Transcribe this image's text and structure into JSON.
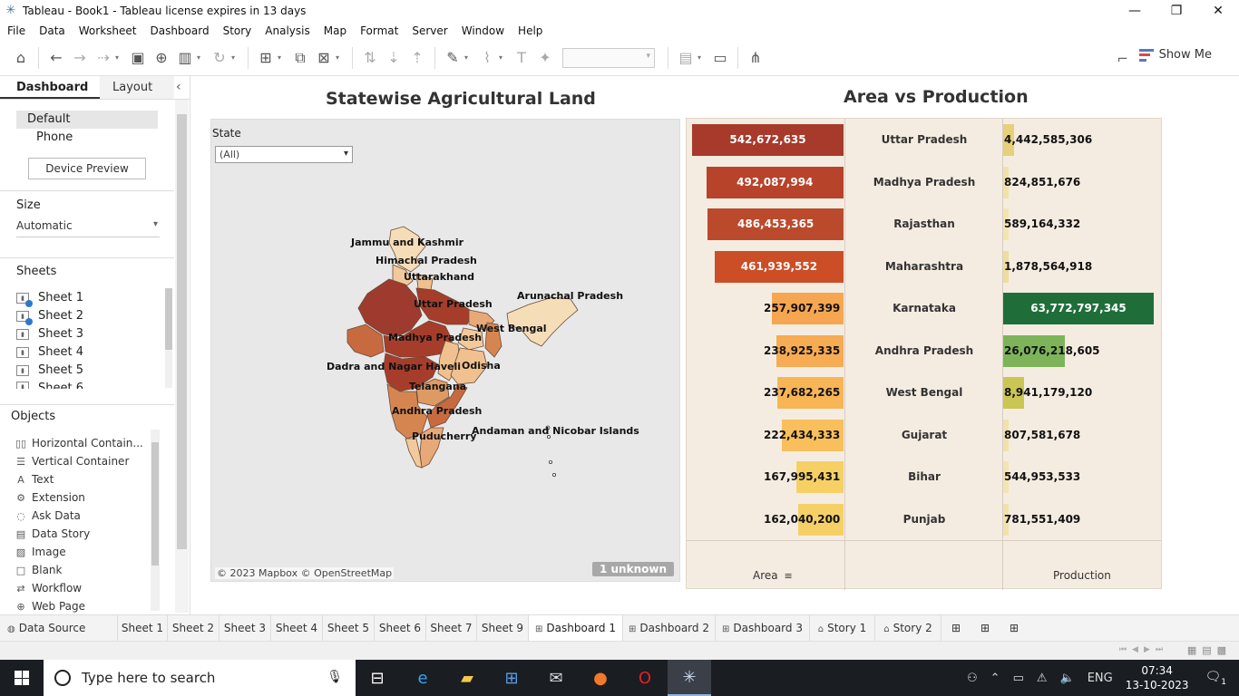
{
  "window": {
    "title": "Tableau - Book1 - Tableau license expires in 13 days",
    "controls": [
      "—",
      "❐",
      "✕"
    ]
  },
  "menu": [
    "File",
    "Data",
    "Worksheet",
    "Dashboard",
    "Story",
    "Analysis",
    "Map",
    "Format",
    "Server",
    "Window",
    "Help"
  ],
  "toolbar": {
    "show_me_label": "Show Me"
  },
  "left_panel": {
    "tabs": [
      "Dashboard",
      "Layout"
    ],
    "devices": [
      "Default",
      "Phone"
    ],
    "device_preview_label": "Device Preview",
    "size_heading": "Size",
    "size_value": "Automatic",
    "sheets_heading": "Sheets",
    "sheets": [
      "Sheet 1",
      "Sheet 2",
      "Sheet 3",
      "Sheet 4",
      "Sheet 5",
      "Sheet 6"
    ],
    "objects_heading": "Objects",
    "objects": [
      {
        "label": "Horizontal Contain...",
        "icon": "horizontal-container-icon"
      },
      {
        "label": "Vertical Container",
        "icon": "vertical-container-icon"
      },
      {
        "label": "Text",
        "icon": "text-icon"
      },
      {
        "label": "Extension",
        "icon": "extension-icon"
      },
      {
        "label": "Ask Data",
        "icon": "ask-data-icon"
      },
      {
        "label": "Data Story",
        "icon": "data-story-icon"
      },
      {
        "label": "Image",
        "icon": "image-icon"
      },
      {
        "label": "Blank",
        "icon": "blank-icon"
      },
      {
        "label": "Workflow",
        "icon": "workflow-icon"
      },
      {
        "label": "Web Page",
        "icon": "web-page-icon"
      }
    ]
  },
  "map": {
    "title": "Statewise Agricultural Land",
    "filter_label": "State",
    "filter_value": "(All)",
    "attribution": "© 2023 Mapbox © OpenStreetMap",
    "unknown_badge": "1 unknown",
    "labels": [
      "Jammu and Kashmir",
      "Himachal Pradesh",
      "Uttarakhand",
      "Arunachal Pradesh",
      "Uttar Pradesh",
      "West Bengal",
      "Madhya Pradesh",
      "Dadra and Nagar Haveli",
      "Odisha",
      "Telangana",
      "Andhra Pradesh",
      "Andaman and Nicobar Islands",
      "Puducherry"
    ]
  },
  "chart_data": {
    "type": "bar",
    "title": "Area vs Production",
    "categories": [
      "Uttar Pradesh",
      "Madhya Pradesh",
      "Rajasthan",
      "Maharashtra",
      "Karnataka",
      "Andhra Pradesh",
      "West Bengal",
      "Gujarat",
      "Bihar",
      "Punjab"
    ],
    "series": [
      {
        "name": "Area",
        "values": [
          542672635,
          492087994,
          486453365,
          461939552,
          257907399,
          238925335,
          237682265,
          222434333,
          167995431,
          162040200
        ],
        "labels": [
          "542,672,635",
          "492,087,994",
          "486,453,365",
          "461,939,552",
          "257,907,399",
          "238,925,335",
          "237,682,265",
          "222,434,333",
          "167,995,431",
          "162,040,200"
        ]
      },
      {
        "name": "Production",
        "values": [
          4442585306,
          824851676,
          589164332,
          1878564918,
          63772797345,
          26076218605,
          8941179120,
          807581678,
          544953533,
          781551409
        ],
        "labels": [
          "4,442,585,306",
          "824,851,676",
          "589,164,332",
          "1,878,564,918",
          "63,772,797,345",
          "26,076,218,605",
          "8,941,179,120",
          "807,581,678",
          "544,953,533",
          "781,551,409"
        ]
      }
    ],
    "area_axis_label": "Area",
    "production_axis_label": "Production",
    "area_colors": [
      "#a83a2b",
      "#b8432b",
      "#bb4a2c",
      "#cc4e26",
      "#f6a650",
      "#f7ab52",
      "#f8b556",
      "#f8bf5c",
      "#f6d064",
      "#f4d066"
    ],
    "production_colors": [
      "#e6d07a",
      "#f0e2a8",
      "#f2e6b0",
      "#eedd9c",
      "#1f6e3a",
      "#7db45a",
      "#c9c653",
      "#f0e2a8",
      "#f2e6b0",
      "#f0e2a8"
    ]
  },
  "bottom_tabs": {
    "data_source": "Data Source",
    "tabs": [
      "Sheet 1",
      "Sheet 2",
      "Sheet 3",
      "Sheet 4",
      "Sheet 5",
      "Sheet 6",
      "Sheet 7",
      "Sheet 9",
      "Dashboard 1",
      "Dashboard 2",
      "Dashboard 3",
      "Story 1",
      "Story 2"
    ],
    "active": "Dashboard 1"
  },
  "taskbar": {
    "search_placeholder": "Type here to search",
    "language": "ENG",
    "time": "07:34",
    "date": "13-10-2023",
    "notification_count": "1"
  }
}
